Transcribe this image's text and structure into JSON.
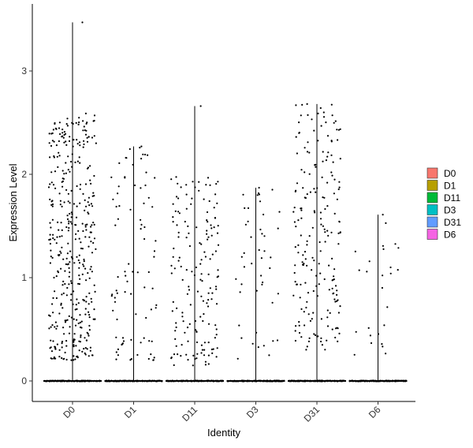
{
  "chart_data": {
    "type": "scatter",
    "subtype": "violin-jitter",
    "title": "",
    "xlabel": "Identity",
    "ylabel": "Expression Level",
    "categories": [
      "D0",
      "D1",
      "D11",
      "D3",
      "D31",
      "D6"
    ],
    "ylim": [
      -0.19,
      3.6
    ],
    "yticks": [
      0,
      1,
      2,
      3
    ],
    "grid": false,
    "legend": {
      "position": "right",
      "entries": [
        {
          "label": "D0",
          "color": "#F8766D"
        },
        {
          "label": "D1",
          "color": "#B79F00"
        },
        {
          "label": "D11",
          "color": "#00BA38"
        },
        {
          "label": "D3",
          "color": "#00BFC4"
        },
        {
          "label": "D31",
          "color": "#619CFF"
        },
        {
          "label": "D6",
          "color": "#F564E3"
        }
      ]
    },
    "series": [
      {
        "category": "D0",
        "max": 3.47,
        "nonzero_points": 400,
        "range": [
          0.2,
          2.6
        ]
      },
      {
        "category": "D1",
        "max": 2.27,
        "nonzero_points": 85,
        "range": [
          0.2,
          2.27
        ]
      },
      {
        "category": "D11",
        "max": 2.66,
        "nonzero_points": 160,
        "range": [
          0.15,
          2.0
        ]
      },
      {
        "category": "D3",
        "max": 1.87,
        "nonzero_points": 45,
        "range": [
          0.2,
          1.87
        ]
      },
      {
        "category": "D31",
        "max": 2.68,
        "nonzero_points": 200,
        "range": [
          0.3,
          2.68
        ]
      },
      {
        "category": "D6",
        "max": 1.61,
        "nonzero_points": 25,
        "range": [
          0.2,
          1.61
        ]
      }
    ]
  }
}
